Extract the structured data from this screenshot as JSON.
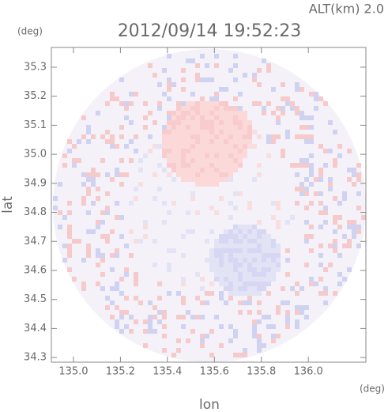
{
  "chart_data": {
    "type": "radar",
    "title": "2012/09/14 19:52:23",
    "subtitle": "ALT(km) 2.0",
    "x_label": "lon",
    "y_label": "lat",
    "x_unit": "(deg)",
    "y_unit": "(deg)",
    "xlim": [
      134.906,
      136.245
    ],
    "ylim": [
      34.284,
      35.368
    ],
    "xticks": [
      {
        "value": 135.0,
        "label": "135.0"
      },
      135.2,
      135.4,
      135.6,
      135.8,
      {
        "value": 136.0,
        "label": "136.0"
      }
    ],
    "yticks": [
      34.3,
      34.4,
      34.5,
      34.6,
      34.7,
      34.8,
      34.9,
      {
        "value": 35.0,
        "label": "35.0"
      },
      35.1,
      35.2,
      35.3
    ]
  }
}
